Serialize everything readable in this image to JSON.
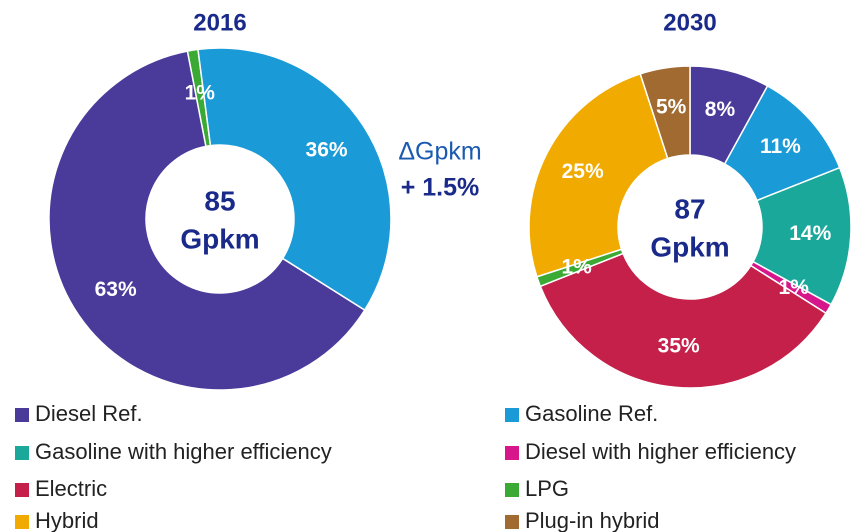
{
  "chart_data": [
    {
      "type": "pie",
      "title": "2016",
      "center_value": 85,
      "center_unit": "Gpkm",
      "categories": [
        "LPG",
        "Gasoline Ref.",
        "Diesel Ref."
      ],
      "values": [
        1,
        36,
        63
      ],
      "value_labels": [
        "1%",
        "36%",
        "63%"
      ]
    },
    {
      "type": "pie",
      "title": "2030",
      "center_value": 87,
      "center_unit": "Gpkm",
      "categories": [
        "Diesel Ref.",
        "Gasoline Ref.",
        "Gasoline with higher efficiency",
        "Diesel with higher efficiency",
        "Electric",
        "LPG",
        "Hybrid",
        "Plug-in hybrid"
      ],
      "values": [
        8,
        11,
        14,
        1,
        35,
        1,
        25,
        5
      ],
      "value_labels": [
        "8%",
        "11%",
        "14%",
        "1%",
        "35%",
        "1%",
        "25%",
        "5%"
      ]
    }
  ],
  "annotation": {
    "label": "ΔGpkm",
    "value": "+ 1.5%"
  },
  "legend": [
    {
      "name": "Diesel Ref.",
      "color": "#4a3a9a"
    },
    {
      "name": "Gasoline Ref.",
      "color": "#1a9ad6"
    },
    {
      "name": "Gasoline with higher efficiency",
      "color": "#1aa89a"
    },
    {
      "name": "Diesel with higher efficiency",
      "color": "#d6168a"
    },
    {
      "name": "Electric",
      "color": "#c4204a"
    },
    {
      "name": "LPG",
      "color": "#3aaa35"
    },
    {
      "name": "Hybrid",
      "color": "#f0aa00"
    },
    {
      "name": "Plug-in hybrid",
      "color": "#a06a30"
    }
  ]
}
